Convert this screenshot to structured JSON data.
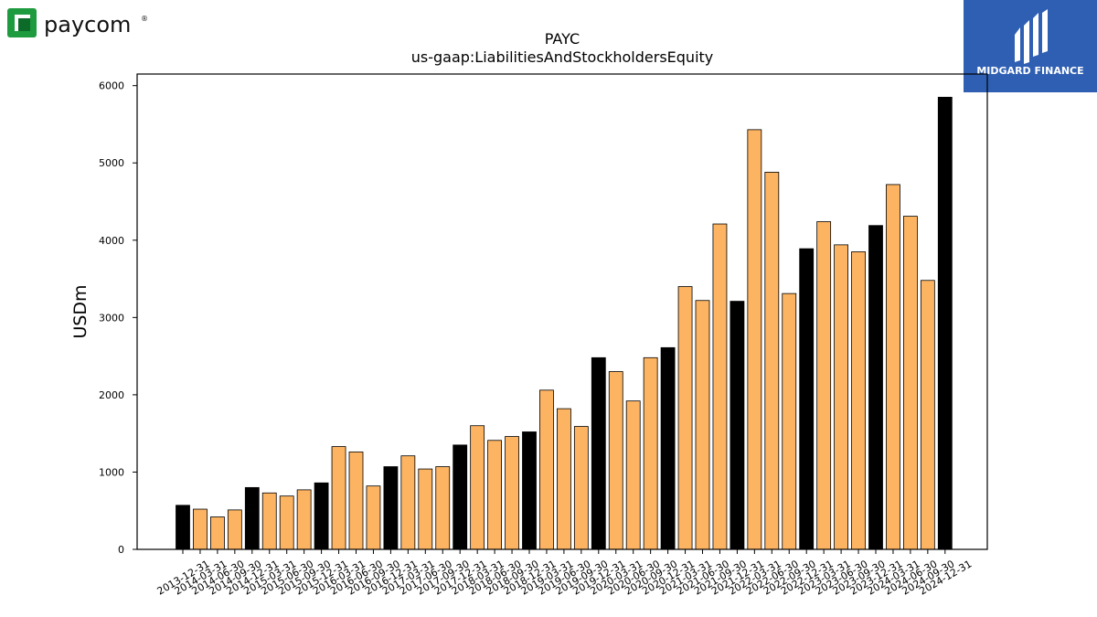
{
  "brand_left": {
    "name": "paycom",
    "registered": "®",
    "icon": "paycom-logo-icon",
    "color": "#1e9b3e"
  },
  "brand_right": {
    "name": "MIDGARD FINANCE",
    "icon": "midgard-logo-icon",
    "color": "#2f5fb3"
  },
  "chart_data": {
    "type": "bar",
    "title": "PAYC",
    "subtitle": "us-gaap:LiabilitiesAndStockholdersEquity",
    "xlabel": "",
    "ylabel": "USDm",
    "ylim": [
      0,
      6150
    ],
    "yticks": [
      0,
      1000,
      2000,
      3000,
      4000,
      5000,
      6000
    ],
    "grid": false,
    "colors": {
      "annual": "#000000",
      "quarterly": "#fdb462"
    },
    "categories": [
      "2013-12-31",
      "2014-03-31",
      "2014-06-30",
      "2014-09-30",
      "2014-12-31",
      "2015-03-31",
      "2015-06-30",
      "2015-09-30",
      "2015-12-31",
      "2016-03-31",
      "2016-06-30",
      "2016-09-30",
      "2016-12-31",
      "2017-03-31",
      "2017-06-30",
      "2017-09-30",
      "2017-12-31",
      "2018-03-31",
      "2018-06-30",
      "2018-09-30",
      "2018-12-31",
      "2019-03-31",
      "2019-06-30",
      "2019-09-30",
      "2019-12-31",
      "2020-03-31",
      "2020-06-30",
      "2020-09-30",
      "2020-12-31",
      "2021-03-31",
      "2021-06-30",
      "2021-09-30",
      "2021-12-31",
      "2022-03-31",
      "2022-06-30",
      "2022-09-30",
      "2022-12-31",
      "2023-03-31",
      "2023-06-30",
      "2023-09-30",
      "2023-12-31",
      "2024-03-31",
      "2024-06-30",
      "2024-09-30",
      "2024-12-31"
    ],
    "values": [
      570,
      520,
      420,
      510,
      800,
      730,
      690,
      770,
      860,
      1330,
      1260,
      820,
      1070,
      1210,
      1040,
      1070,
      1350,
      1600,
      1410,
      1460,
      1520,
      2060,
      1820,
      1590,
      2480,
      2300,
      1920,
      2480,
      2610,
      3400,
      3220,
      4210,
      3210,
      5430,
      4880,
      3310,
      3890,
      4240,
      3940,
      3850,
      4190,
      4720,
      4310,
      3480,
      5850
    ],
    "annual": [
      true,
      false,
      false,
      false,
      true,
      false,
      false,
      false,
      true,
      false,
      false,
      false,
      true,
      false,
      false,
      false,
      true,
      false,
      false,
      false,
      true,
      false,
      false,
      false,
      true,
      false,
      false,
      false,
      true,
      false,
      false,
      false,
      true,
      false,
      false,
      false,
      true,
      false,
      false,
      false,
      true,
      false,
      false,
      false,
      true
    ]
  }
}
